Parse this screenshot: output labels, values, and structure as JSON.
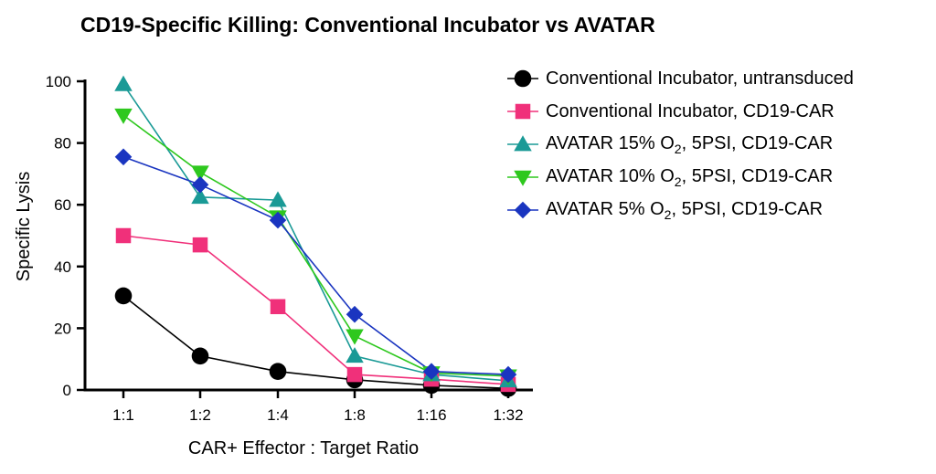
{
  "chart_data": {
    "type": "line",
    "title": "CD19-Specific Killing: Conventional Incubator vs AVATAR",
    "xlabel": "CAR+ Effector : Target Ratio",
    "ylabel": "Specific Lysis",
    "categories": [
      "1:1",
      "1:2",
      "1:4",
      "1:8",
      "1:16",
      "1:32"
    ],
    "ylim": [
      0,
      100
    ],
    "yticks": [
      0,
      20,
      40,
      60,
      80,
      100
    ],
    "grid": false,
    "legend_position": "right",
    "series": [
      {
        "name": "Conventional Incubator, untransduced",
        "name_pre": "Conventional Incubator, untransduced",
        "name_sub": "",
        "name_post": "",
        "color": "#000000",
        "marker": "circle",
        "values": [
          30.5,
          11,
          6,
          3.3,
          1.5,
          0.5
        ]
      },
      {
        "name": "Conventional Incubator, CD19-CAR",
        "name_pre": "Conventional Incubator, CD19-CAR",
        "name_sub": "",
        "name_post": "",
        "color": "#f0307a",
        "marker": "square",
        "values": [
          50,
          47,
          27,
          5,
          3.5,
          1.8
        ]
      },
      {
        "name": "AVATAR 15% O2, 5PSI, CD19-CAR",
        "name_pre": "AVATAR 15% O",
        "name_sub": "2",
        "name_post": ", 5PSI, CD19-CAR",
        "color": "#1a9a96",
        "marker": "triangle-up",
        "values": [
          99,
          62.5,
          61.5,
          11,
          5,
          3
        ]
      },
      {
        "name": "AVATAR 10% O2, 5PSI, CD19-CAR",
        "name_pre": "AVATAR 10% O",
        "name_sub": "2",
        "name_post": ", 5PSI, CD19-CAR",
        "color": "#2ec81e",
        "marker": "triangle-down",
        "values": [
          89,
          70.5,
          56,
          17.5,
          5.5,
          4.5
        ]
      },
      {
        "name": "AVATAR 5% O2, 5PSI, CD19-CAR",
        "name_pre": "AVATAR 5% O",
        "name_sub": "2",
        "name_post": ", 5PSI, CD19-CAR",
        "color": "#1a35c0",
        "marker": "diamond",
        "values": [
          75.5,
          66.5,
          55,
          24.5,
          6,
          5
        ]
      }
    ]
  }
}
